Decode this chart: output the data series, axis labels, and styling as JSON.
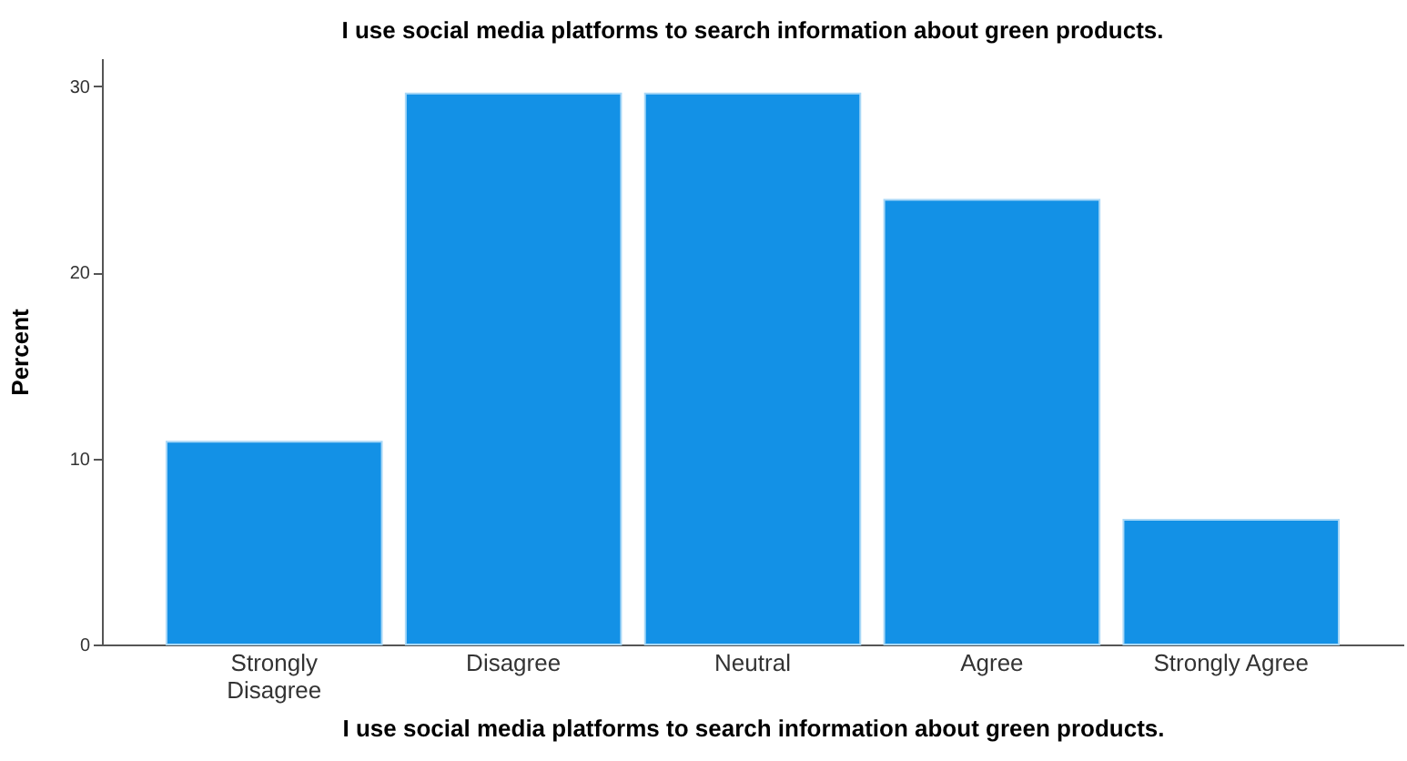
{
  "chart_data": {
    "type": "bar",
    "title": "I use social media platforms to search information about green products.",
    "xlabel": "I use social media platforms to search information about green products.",
    "ylabel": "Percent",
    "categories": [
      "Strongly Disagree",
      "Disagree",
      "Neutral",
      "Agree",
      "Strongly Agree"
    ],
    "values": [
      10.9,
      29.6,
      29.6,
      23.9,
      6.7
    ],
    "color": "#1391e6",
    "ylim": [
      0,
      31.5
    ],
    "yticks": [
      0,
      10,
      20,
      30
    ],
    "grid": false
  }
}
